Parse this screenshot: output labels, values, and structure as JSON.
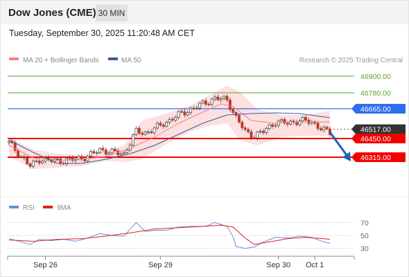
{
  "header": {
    "title": "Dow Jones (CME)",
    "timeframe": "30 MIN"
  },
  "timestamp": "Tuesday, September 30, 2025 11:20:48 AM CET",
  "colors": {
    "target": "#5aa02c",
    "pivot": "#2f6ef0",
    "support": "#f20000",
    "price": "#333333",
    "ma20": "#f08080",
    "band": "#fde0e0",
    "ma50": "#3a5a9a",
    "rsi": "#6a8fd8",
    "rsi_ma": "#e02020",
    "arrow": "#2060b0"
  },
  "chart_data": [
    {
      "type": "candlestick",
      "title": "",
      "legend": [
        {
          "name": "MA 20 + Bollinger Bands",
          "color": "#f08080"
        },
        {
          "name": "MA 50",
          "color": "#3a5a9a"
        }
      ],
      "watermark": "Research © 2025 Trading Central",
      "x_ticks": [
        "Sep 26",
        "Sep 29",
        "Sep 30",
        "Oct 1"
      ],
      "ylim": [
        46020,
        46970
      ],
      "levels": [
        {
          "label": "46900.00",
          "value": 46900,
          "kind": "target"
        },
        {
          "label": "46780.00",
          "value": 46780,
          "kind": "target"
        },
        {
          "label": "46665.00",
          "value": 46665,
          "kind": "pivot"
        },
        {
          "label": "46517.00",
          "value": 46517,
          "kind": "price"
        },
        {
          "label": "46450.00",
          "value": 46450,
          "kind": "support"
        },
        {
          "label": "46315.00",
          "value": 46315,
          "kind": "support"
        }
      ],
      "close_anchors": [
        [
          0,
          46420
        ],
        [
          4,
          46320
        ],
        [
          7,
          46250
        ],
        [
          10,
          46300
        ],
        [
          14,
          46290
        ],
        [
          18,
          46290
        ],
        [
          22,
          46300
        ],
        [
          26,
          46320
        ],
        [
          30,
          46370
        ],
        [
          34,
          46350
        ],
        [
          38,
          46340
        ],
        [
          42,
          46500
        ],
        [
          45,
          46490
        ],
        [
          48,
          46520
        ],
        [
          52,
          46570
        ],
        [
          56,
          46620
        ],
        [
          60,
          46660
        ],
        [
          65,
          46710
        ],
        [
          68,
          46740
        ],
        [
          72,
          46730
        ],
        [
          75,
          46600
        ],
        [
          78,
          46500
        ],
        [
          81,
          46470
        ],
        [
          84,
          46500
        ],
        [
          88,
          46570
        ],
        [
          92,
          46560
        ],
        [
          96,
          46580
        ],
        [
          100,
          46570
        ],
        [
          104,
          46510
        ],
        [
          106,
          46490
        ]
      ],
      "ma50_anchors": [
        [
          0,
          46440
        ],
        [
          8,
          46350
        ],
        [
          16,
          46270
        ],
        [
          24,
          46270
        ],
        [
          32,
          46300
        ],
        [
          40,
          46340
        ],
        [
          48,
          46400
        ],
        [
          56,
          46480
        ],
        [
          64,
          46560
        ],
        [
          72,
          46620
        ],
        [
          80,
          46630
        ],
        [
          88,
          46635
        ],
        [
          96,
          46630
        ],
        [
          106,
          46600
        ]
      ],
      "ma20_anchors": [
        [
          0,
          46400
        ],
        [
          8,
          46310
        ],
        [
          16,
          46290
        ],
        [
          24,
          46300
        ],
        [
          32,
          46320
        ],
        [
          40,
          46380
        ],
        [
          48,
          46460
        ],
        [
          56,
          46560
        ],
        [
          64,
          46640
        ],
        [
          70,
          46700
        ],
        [
          74,
          46680
        ],
        [
          80,
          46580
        ],
        [
          88,
          46560
        ],
        [
          96,
          46570
        ],
        [
          106,
          46570
        ]
      ],
      "band_upper_anchors": [
        [
          0,
          46460
        ],
        [
          8,
          46370
        ],
        [
          16,
          46340
        ],
        [
          24,
          46330
        ],
        [
          32,
          46360
        ],
        [
          38,
          46400
        ],
        [
          44,
          46580
        ],
        [
          52,
          46630
        ],
        [
          60,
          46690
        ],
        [
          66,
          46760
        ],
        [
          72,
          46830
        ],
        [
          76,
          46790
        ],
        [
          82,
          46660
        ],
        [
          90,
          46620
        ],
        [
          98,
          46620
        ],
        [
          106,
          46650
        ]
      ],
      "band_lower_anchors": [
        [
          0,
          46320
        ],
        [
          8,
          46230
        ],
        [
          16,
          46240
        ],
        [
          24,
          46250
        ],
        [
          32,
          46290
        ],
        [
          38,
          46280
        ],
        [
          44,
          46300
        ],
        [
          52,
          46410
        ],
        [
          60,
          46500
        ],
        [
          66,
          46540
        ],
        [
          72,
          46560
        ],
        [
          76,
          46440
        ],
        [
          82,
          46400
        ],
        [
          90,
          46460
        ],
        [
          98,
          46470
        ],
        [
          106,
          46470
        ]
      ]
    },
    {
      "type": "line",
      "title": "",
      "series": [
        {
          "name": "RSI",
          "color": "#6a8fd8"
        },
        {
          "name": "9MA",
          "color": "#e02020"
        }
      ],
      "y_ticks": [
        "70",
        "50",
        "30"
      ],
      "ylim": [
        20,
        80
      ],
      "rsi_anchors": [
        [
          0,
          45
        ],
        [
          4,
          40
        ],
        [
          7,
          36
        ],
        [
          10,
          44
        ],
        [
          14,
          42
        ],
        [
          18,
          44
        ],
        [
          22,
          41
        ],
        [
          26,
          46
        ],
        [
          30,
          53
        ],
        [
          34,
          50
        ],
        [
          38,
          49
        ],
        [
          42,
          70
        ],
        [
          45,
          56
        ],
        [
          48,
          58
        ],
        [
          52,
          58
        ],
        [
          56,
          63
        ],
        [
          60,
          64
        ],
        [
          65,
          64
        ],
        [
          68,
          70
        ],
        [
          72,
          64
        ],
        [
          74,
          48
        ],
        [
          75,
          33
        ],
        [
          78,
          30
        ],
        [
          81,
          32
        ],
        [
          84,
          40
        ],
        [
          88,
          47
        ],
        [
          92,
          46
        ],
        [
          96,
          49
        ],
        [
          100,
          47
        ],
        [
          104,
          40
        ],
        [
          106,
          38
        ]
      ],
      "rsi_ma_anchors": [
        [
          0,
          43
        ],
        [
          8,
          41
        ],
        [
          16,
          44
        ],
        [
          24,
          45
        ],
        [
          32,
          49
        ],
        [
          40,
          54
        ],
        [
          48,
          60
        ],
        [
          56,
          62
        ],
        [
          64,
          64
        ],
        [
          70,
          66
        ],
        [
          74,
          63
        ],
        [
          78,
          46
        ],
        [
          81,
          36
        ],
        [
          86,
          40
        ],
        [
          92,
          45
        ],
        [
          98,
          47
        ],
        [
          104,
          45
        ],
        [
          106,
          44
        ]
      ]
    }
  ]
}
